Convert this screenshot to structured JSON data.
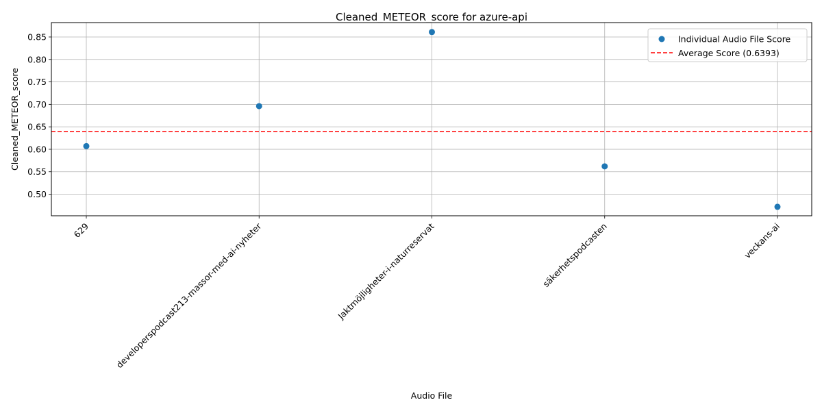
{
  "chart_data": {
    "type": "scatter",
    "title": "Cleaned_METEOR_score for azure-api",
    "xlabel": "Audio File",
    "ylabel": "Cleaned_METEOR_score",
    "categories": [
      "629",
      "developerspodcast213-massor-med-ai-nyheter",
      "Jaktmöjligheter-i-naturreservat",
      "säkerhetspodcasten",
      "veckans-ai"
    ],
    "series": [
      {
        "name": "Individual Audio File Score",
        "values": [
          0.607,
          0.696,
          0.861,
          0.562,
          0.472
        ],
        "color": "#1f77b4"
      }
    ],
    "average": {
      "name": "Average Score (0.6393)",
      "value": 0.6393,
      "color": "#ff0000",
      "style": "dashed"
    },
    "y_ticks": [
      "0.50",
      "0.55",
      "0.60",
      "0.65",
      "0.70",
      "0.75",
      "0.80",
      "0.85"
    ],
    "ylim": [
      0.452,
      0.882
    ],
    "x_tick_rotation": 45,
    "grid": true,
    "legend_position": "top-right"
  }
}
